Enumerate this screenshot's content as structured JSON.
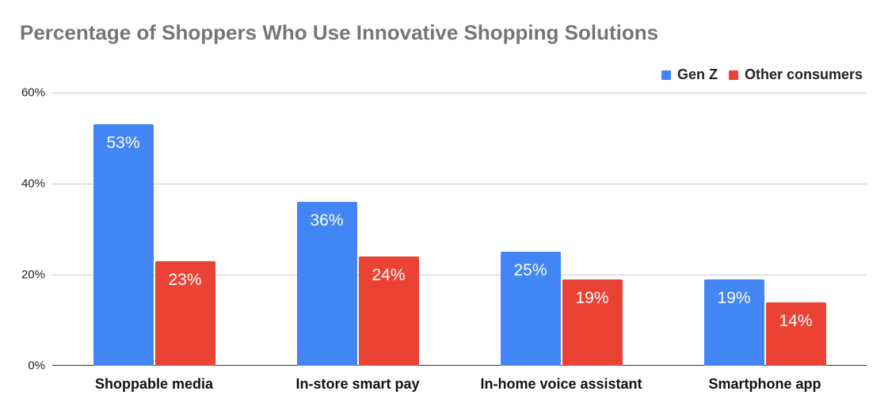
{
  "chart_data": {
    "type": "bar",
    "title": "Percentage of Shoppers Who Use Innovative Shopping Solutions",
    "xlabel": "",
    "ylabel": "",
    "categories": [
      "Shoppable media",
      "In-store smart pay",
      "In-home voice assistant",
      "Smartphone app"
    ],
    "series": [
      {
        "name": "Gen Z",
        "color": "#4285f4",
        "values": [
          53,
          36,
          25,
          19
        ],
        "labels": [
          "53%",
          "36%",
          "25%",
          "19%"
        ]
      },
      {
        "name": "Other consumers",
        "color": "#ea4335",
        "values": [
          23,
          24,
          19,
          14
        ],
        "labels": [
          "23%",
          "24%",
          "19%",
          "14%"
        ]
      }
    ],
    "ylim": [
      0,
      60
    ],
    "yticks": [
      "0%",
      "20%",
      "40%",
      "60%"
    ],
    "grid": true,
    "legend_position": "top-right"
  }
}
